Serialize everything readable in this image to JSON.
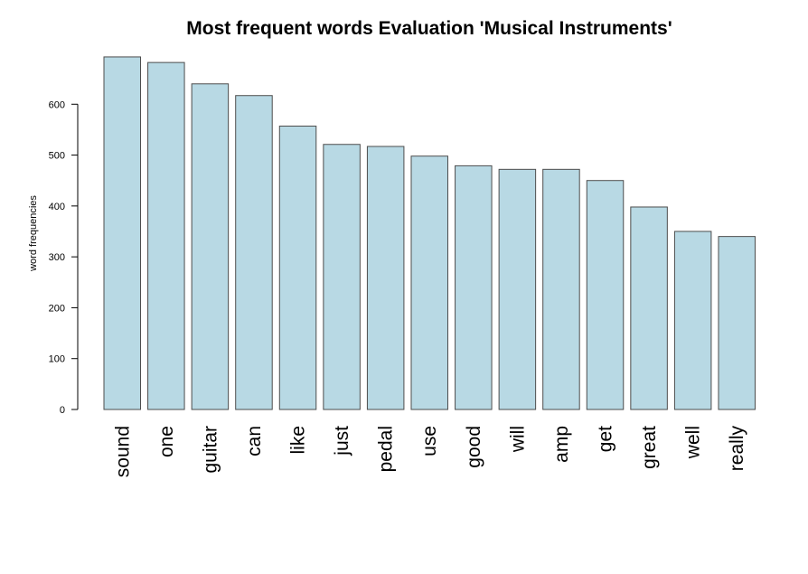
{
  "chart_data": {
    "type": "bar",
    "title": "Most frequent words  Evaluation 'Musical Instruments'",
    "xlabel": "",
    "ylabel": "word frequencies",
    "categories": [
      "sound",
      "one",
      "guitar",
      "can",
      "like",
      "just",
      "pedal",
      "use",
      "good",
      "will",
      "amp",
      "get",
      "great",
      "well",
      "really"
    ],
    "values": [
      693,
      682,
      640,
      617,
      557,
      521,
      517,
      498,
      479,
      472,
      472,
      450,
      398,
      350,
      340
    ],
    "ylim": [
      0,
      700
    ],
    "yticks": [
      0,
      100,
      200,
      300,
      400,
      500,
      600
    ],
    "grid": false,
    "legend": "none",
    "colors": {
      "bar_fill": "#b8d9e4",
      "bar_stroke": "#4d4d4d"
    }
  }
}
